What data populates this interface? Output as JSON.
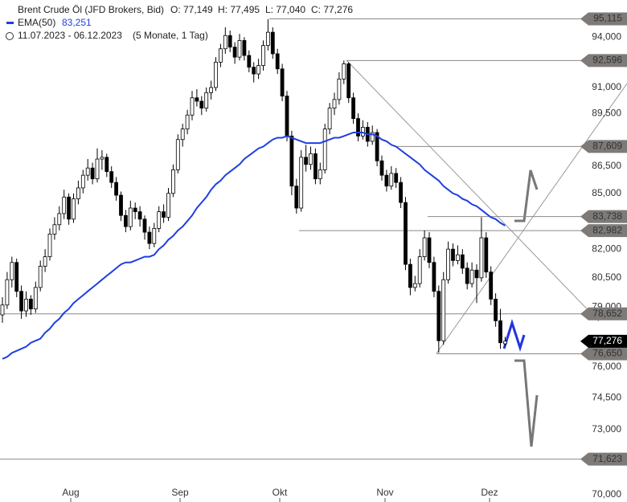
{
  "header": {
    "title": "Brent Crude Öl (JFD Brokers, Bid)",
    "open": "O: 77,149",
    "high": "H: 77,495",
    "low": "L: 77,040",
    "close": "C: 77,276",
    "ema_name": "EMA(50)",
    "ema_value": "83,251",
    "range": "11.07.2023 - 06.12.2023",
    "period": "(5 Monate, 1 Tag)"
  },
  "chart_data": {
    "type": "candlestick",
    "log": true,
    "ylim": [
      69.67,
      96.28
    ],
    "yticks": [
      {
        "value": 94,
        "label": "94,000"
      },
      {
        "value": 91,
        "label": "91,000"
      },
      {
        "value": 89.5,
        "label": "89,500"
      },
      {
        "value": 86.5,
        "label": "86,500"
      },
      {
        "value": 85,
        "label": "85,000"
      },
      {
        "value": 82,
        "label": "82,000"
      },
      {
        "value": 80.5,
        "label": "80,500"
      },
      {
        "value": 79,
        "label": "79,000"
      },
      {
        "value": 76,
        "label": "76,000"
      },
      {
        "value": 74.5,
        "label": "74,500"
      },
      {
        "value": 73,
        "label": "73,000"
      },
      {
        "value": 70,
        "label": "70,000"
      }
    ],
    "categories": [
      "Aug",
      "Sep",
      "Okt",
      "Nov",
      "Dez"
    ],
    "ohlc": [
      [
        78.6,
        79.5,
        78.2,
        79.1
      ],
      [
        79.1,
        80.8,
        78.9,
        80.4
      ],
      [
        80.4,
        81.6,
        80.0,
        81.3
      ],
      [
        81.3,
        81.5,
        79.5,
        79.8
      ],
      [
        79.8,
        80.1,
        78.4,
        78.8
      ],
      [
        78.8,
        79.8,
        78.5,
        79.4
      ],
      [
        79.4,
        79.6,
        78.6,
        78.9
      ],
      [
        78.9,
        80.3,
        78.7,
        80.0
      ],
      [
        80.0,
        81.4,
        79.8,
        81.1
      ],
      [
        81.1,
        82.0,
        80.8,
        81.6
      ],
      [
        81.6,
        83.1,
        81.4,
        82.8
      ],
      [
        82.8,
        83.7,
        82.5,
        83.3
      ],
      [
        83.3,
        84.3,
        83.0,
        83.9
      ],
      [
        83.9,
        85.2,
        83.6,
        84.8
      ],
      [
        84.8,
        85.0,
        83.3,
        83.6
      ],
      [
        83.6,
        85.0,
        83.4,
        84.7
      ],
      [
        84.7,
        85.7,
        84.4,
        85.3
      ],
      [
        85.3,
        86.3,
        85.0,
        86.0
      ],
      [
        86.0,
        86.9,
        85.7,
        86.4
      ],
      [
        86.4,
        86.7,
        85.5,
        85.8
      ],
      [
        85.8,
        87.5,
        85.6,
        86.9
      ],
      [
        86.9,
        87.4,
        86.3,
        87.0
      ],
      [
        87.0,
        87.2,
        85.9,
        86.2
      ],
      [
        86.2,
        86.5,
        85.3,
        85.6
      ],
      [
        85.6,
        85.9,
        84.6,
        84.9
      ],
      [
        84.9,
        85.1,
        83.5,
        83.8
      ],
      [
        83.8,
        84.1,
        82.9,
        83.2
      ],
      [
        83.2,
        84.6,
        83.0,
        84.2
      ],
      [
        84.2,
        84.5,
        83.6,
        84.0
      ],
      [
        84.0,
        84.3,
        83.2,
        83.6
      ],
      [
        83.6,
        83.8,
        82.5,
        82.9
      ],
      [
        82.9,
        83.2,
        82.0,
        82.3
      ],
      [
        82.3,
        83.4,
        82.1,
        83.1
      ],
      [
        83.1,
        84.3,
        82.9,
        84.0
      ],
      [
        84.0,
        84.4,
        83.4,
        83.7
      ],
      [
        83.7,
        85.3,
        83.5,
        85.0
      ],
      [
        85.0,
        86.6,
        84.8,
        86.3
      ],
      [
        86.3,
        88.3,
        86.1,
        88.0
      ],
      [
        88.0,
        88.9,
        87.6,
        88.6
      ],
      [
        88.6,
        89.7,
        88.3,
        89.4
      ],
      [
        89.4,
        90.8,
        89.1,
        90.4
      ],
      [
        90.4,
        90.9,
        89.9,
        90.2
      ],
      [
        90.2,
        90.5,
        89.4,
        89.8
      ],
      [
        89.8,
        91.0,
        89.6,
        90.7
      ],
      [
        90.7,
        91.4,
        90.3,
        91.0
      ],
      [
        91.0,
        92.8,
        90.8,
        92.5
      ],
      [
        92.5,
        93.6,
        92.2,
        93.3
      ],
      [
        93.3,
        94.6,
        93.0,
        94.1
      ],
      [
        94.1,
        94.4,
        93.1,
        93.4
      ],
      [
        93.4,
        93.7,
        92.4,
        92.8
      ],
      [
        92.8,
        94.2,
        92.6,
        93.8
      ],
      [
        93.8,
        94.0,
        92.6,
        92.9
      ],
      [
        92.9,
        93.2,
        91.9,
        92.2
      ],
      [
        92.2,
        92.5,
        91.3,
        91.8
      ],
      [
        91.8,
        92.7,
        91.5,
        92.3
      ],
      [
        92.3,
        93.8,
        92.0,
        93.5
      ],
      [
        93.5,
        95.1,
        93.2,
        94.3
      ],
      [
        94.3,
        94.6,
        92.7,
        93.0
      ],
      [
        93.0,
        93.3,
        91.8,
        92.1
      ],
      [
        92.1,
        92.4,
        90.2,
        90.5
      ],
      [
        90.5,
        90.8,
        87.9,
        88.2
      ],
      [
        88.2,
        88.5,
        84.9,
        85.4
      ],
      [
        85.4,
        85.8,
        83.9,
        84.2
      ],
      [
        84.2,
        87.4,
        84.0,
        87.0
      ],
      [
        87.0,
        87.7,
        86.2,
        86.6
      ],
      [
        86.6,
        87.6,
        86.3,
        87.2
      ],
      [
        87.2,
        87.5,
        85.5,
        85.8
      ],
      [
        85.8,
        86.7,
        85.5,
        86.3
      ],
      [
        86.3,
        88.9,
        86.1,
        88.6
      ],
      [
        88.6,
        90.1,
        88.3,
        89.8
      ],
      [
        89.8,
        90.7,
        89.4,
        90.3
      ],
      [
        90.3,
        91.9,
        90.0,
        91.5
      ],
      [
        91.5,
        92.6,
        91.2,
        92.4
      ],
      [
        92.4,
        92.5,
        90.1,
        90.4
      ],
      [
        90.4,
        90.7,
        88.9,
        89.2
      ],
      [
        89.2,
        89.5,
        87.9,
        88.2
      ],
      [
        88.2,
        89.1,
        88.0,
        88.7
      ],
      [
        88.7,
        89.0,
        87.6,
        87.9
      ],
      [
        87.9,
        88.8,
        87.7,
        88.4
      ],
      [
        88.4,
        88.6,
        86.5,
        86.8
      ],
      [
        86.8,
        87.1,
        85.7,
        86.0
      ],
      [
        86.0,
        86.3,
        85.1,
        85.4
      ],
      [
        85.4,
        86.5,
        85.2,
        86.1
      ],
      [
        86.1,
        86.4,
        85.3,
        85.6
      ],
      [
        85.6,
        85.9,
        84.2,
        84.5
      ],
      [
        84.5,
        84.8,
        80.9,
        81.2
      ],
      [
        81.2,
        81.5,
        79.6,
        80.0
      ],
      [
        80.0,
        80.6,
        79.8,
        80.2
      ],
      [
        80.2,
        82.0,
        80.0,
        81.6
      ],
      [
        81.6,
        83.0,
        81.4,
        82.6
      ],
      [
        82.6,
        82.9,
        81.0,
        81.3
      ],
      [
        81.3,
        81.6,
        79.5,
        79.8
      ],
      [
        79.8,
        80.1,
        76.7,
        77.3
      ],
      [
        77.3,
        80.8,
        77.1,
        80.4
      ],
      [
        80.4,
        82.4,
        80.2,
        82.0
      ],
      [
        82.0,
        82.3,
        81.1,
        81.4
      ],
      [
        81.4,
        82.2,
        81.2,
        81.7
      ],
      [
        81.7,
        82.0,
        80.7,
        81.0
      ],
      [
        81.0,
        81.3,
        79.9,
        80.2
      ],
      [
        80.2,
        81.3,
        80.0,
        80.9
      ],
      [
        80.9,
        81.2,
        79.2,
        80.5
      ],
      [
        80.5,
        83.7,
        80.3,
        82.6
      ],
      [
        82.6,
        82.9,
        80.5,
        80.8
      ],
      [
        80.8,
        81.1,
        79.1,
        79.4
      ],
      [
        79.4,
        79.7,
        78.0,
        78.3
      ],
      [
        78.3,
        78.9,
        76.9,
        77.2
      ],
      [
        77.149,
        77.495,
        77.04,
        77.276
      ]
    ],
    "ema": {
      "color": "#1f3fe0",
      "values": [
        76.4,
        76.5,
        76.7,
        76.8,
        76.9,
        77.0,
        77.2,
        77.3,
        77.4,
        77.7,
        77.9,
        78.2,
        78.4,
        78.7,
        78.9,
        79.2,
        79.4,
        79.6,
        79.8,
        80.0,
        80.2,
        80.4,
        80.6,
        80.8,
        81.0,
        81.2,
        81.3,
        81.3,
        81.4,
        81.5,
        81.6,
        81.6,
        81.7,
        82.0,
        82.2,
        82.5,
        82.7,
        83.0,
        83.2,
        83.5,
        83.8,
        84.2,
        84.5,
        84.8,
        85.2,
        85.5,
        85.7,
        86.0,
        86.2,
        86.4,
        86.6,
        86.9,
        87.1,
        87.3,
        87.5,
        87.6,
        87.8,
        88.0,
        88.1,
        88.1,
        88.2,
        88.1,
        88.0,
        87.9,
        87.8,
        87.8,
        87.8,
        87.8,
        87.9,
        88.0,
        88.1,
        88.1,
        88.2,
        88.3,
        88.4,
        88.4,
        88.4,
        88.3,
        88.3,
        88.2,
        88.0,
        87.9,
        87.7,
        87.6,
        87.4,
        87.2,
        87.0,
        86.8,
        86.6,
        86.3,
        86.1,
        85.9,
        85.7,
        85.4,
        85.2,
        85.0,
        84.9,
        84.7,
        84.6,
        84.4,
        84.3,
        84.1,
        83.9,
        83.7,
        83.6,
        83.4,
        83.251
      ]
    },
    "levels": [
      {
        "value": 95.115,
        "label": "95,115"
      },
      {
        "value": 92.596,
        "label": "92,596"
      },
      {
        "value": 87.609,
        "label": "87,609"
      },
      {
        "value": 83.738,
        "label": "83,738"
      },
      {
        "value": 82.982,
        "label": "82,982"
      },
      {
        "value": 78.652,
        "label": "78,652"
      },
      {
        "value": 76.65,
        "label": "76,650"
      },
      {
        "value": 71.623,
        "label": "71,623"
      }
    ],
    "last_price": {
      "value": 77.276,
      "label": "77,276"
    }
  }
}
